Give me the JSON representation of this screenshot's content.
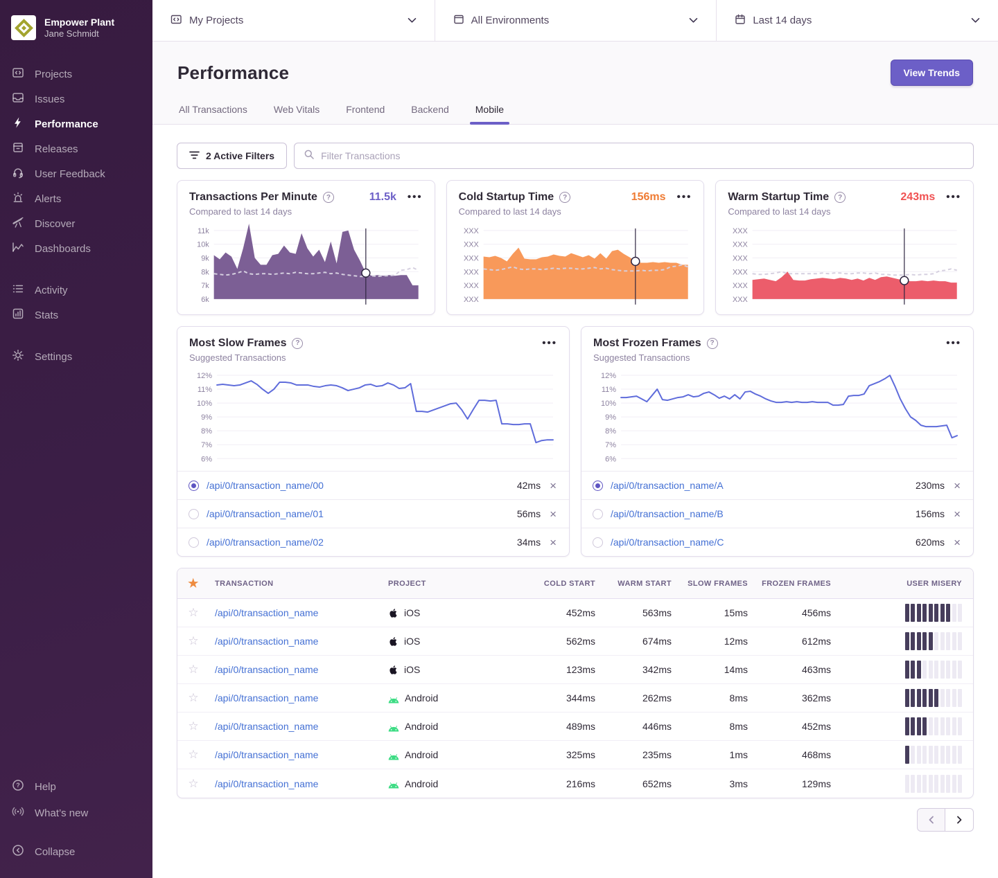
{
  "sidebar": {
    "org_name": "Empower Plant",
    "user_name": "Jane Schmidt",
    "items": [
      {
        "label": "Projects"
      },
      {
        "label": "Issues"
      },
      {
        "label": "Performance",
        "active": true
      },
      {
        "label": "Releases"
      },
      {
        "label": "User Feedback"
      },
      {
        "label": "Alerts"
      },
      {
        "label": "Discover"
      },
      {
        "label": "Dashboards"
      },
      {
        "label": "Activity"
      },
      {
        "label": "Stats"
      },
      {
        "label": "Settings"
      },
      {
        "label": "Help"
      },
      {
        "label": "What’s new"
      },
      {
        "label": "Collapse"
      }
    ]
  },
  "topbar": {
    "project_filter": "My Projects",
    "environment_filter": "All Environments",
    "date_filter": "Last 14 days"
  },
  "header": {
    "title": "Performance",
    "view_trends_label": "View Trends",
    "tabs": [
      {
        "label": "All Transactions"
      },
      {
        "label": "Web Vitals"
      },
      {
        "label": "Frontend"
      },
      {
        "label": "Backend"
      },
      {
        "label": "Mobile",
        "active": true
      }
    ]
  },
  "filters": {
    "active_filters_label": "2 Active Filters",
    "search_placeholder": "Filter Transactions"
  },
  "chart_data": [
    {
      "type": "area",
      "layout": "mini",
      "title": "Transactions Per Minute",
      "subtitle": "Compared to last 14 days",
      "current_value": "11.5k",
      "value_color": "#6c5fc7",
      "color": "#7c5f95",
      "yticks": [
        "11k",
        "10k",
        "9k",
        "8k",
        "7k",
        "6k"
      ],
      "ymin": 6,
      "ymax": 11,
      "values": [
        9.2,
        8.9,
        9.4,
        9.1,
        8.2,
        9.7,
        11.5,
        9.0,
        8.5,
        8.5,
        9.2,
        9.3,
        9.9,
        9.4,
        9.3,
        10.8,
        9.7,
        9.1,
        9.6,
        8.7,
        10.2,
        8.6,
        10.9,
        11.0,
        9.6,
        8.8,
        7.9,
        7.7,
        7.75,
        7.7,
        7.75,
        7.7,
        7.75,
        7.75,
        7.0,
        7.0
      ],
      "baseline": [
        7.85,
        7.8,
        7.75,
        7.8,
        7.9,
        8.05,
        7.85,
        7.8,
        7.85,
        7.85,
        7.8,
        7.85,
        7.9,
        7.85,
        7.95,
        7.9,
        7.85,
        7.85,
        7.9,
        7.95,
        7.85,
        7.9,
        7.8,
        7.75,
        7.7,
        7.65,
        7.65,
        7.7,
        7.65,
        7.7,
        7.7,
        7.75,
        8.1,
        8.15,
        8.3,
        8.1
      ],
      "cursor_index": 26
    },
    {
      "type": "area",
      "layout": "mini",
      "title": "Cold Startup Time",
      "subtitle": "Compared to last 14 days",
      "current_value": "156ms",
      "value_color": "#ef7b33",
      "color": "#f8995a",
      "yticks": [
        "XXX",
        "XXX",
        "XXX",
        "XXX",
        "XXX",
        "XXX"
      ],
      "ymin": 0,
      "ymax": 100,
      "values": [
        62,
        61,
        63,
        60,
        55,
        66,
        75,
        59,
        58,
        58,
        61,
        62,
        65,
        63,
        62,
        67,
        64,
        61,
        64,
        59,
        67,
        59,
        70,
        72,
        66,
        61,
        55,
        53,
        53,
        54,
        53,
        54,
        53,
        53,
        50,
        50
      ],
      "baseline": [
        44,
        43,
        42,
        43,
        45,
        47,
        44,
        43,
        44,
        44,
        43,
        44,
        45,
        44,
        45,
        45,
        44,
        44,
        45,
        46,
        44,
        45,
        43,
        42,
        41,
        41,
        41,
        42,
        41,
        42,
        42,
        43,
        47,
        48,
        50,
        47
      ],
      "cursor_index": 26
    },
    {
      "type": "area",
      "layout": "mini",
      "title": "Warm Startup Time",
      "subtitle": "Compared to last 14 days",
      "current_value": "243ms",
      "value_color": "#f05152",
      "color": "#ec5d6b",
      "yticks": [
        "XXX",
        "XXX",
        "XXX",
        "XXX",
        "XXX",
        "XXX"
      ],
      "ymin": 0,
      "ymax": 100,
      "values": [
        28,
        29,
        30,
        28,
        26,
        32,
        40,
        28,
        27,
        27,
        29,
        30,
        31,
        30,
        29,
        31,
        30,
        28,
        30,
        27,
        31,
        28,
        32,
        33,
        31,
        29,
        27,
        26,
        26,
        27,
        26,
        27,
        26,
        26,
        24,
        24
      ],
      "baseline": [
        37,
        36,
        36,
        37,
        38,
        40,
        37,
        37,
        37,
        37,
        37,
        37,
        38,
        37,
        38,
        38,
        37,
        37,
        38,
        38,
        37,
        38,
        36,
        36,
        35,
        35,
        35,
        36,
        35,
        36,
        36,
        37,
        41,
        42,
        44,
        42
      ],
      "cursor_index": 26
    },
    {
      "type": "line",
      "layout": "wide",
      "title": "Most Slow Frames",
      "subtitle": "Suggested Transactions",
      "color": "#5f6cdb",
      "yticks": [
        "12%",
        "11%",
        "10%",
        "9%",
        "8%",
        "7%",
        "6%"
      ],
      "ymin": 6,
      "ymax": 12,
      "values": [
        11.3,
        11.35,
        11.3,
        11.25,
        11.3,
        11.45,
        11.6,
        11.35,
        11.0,
        10.7,
        11.0,
        11.5,
        11.5,
        11.45,
        11.3,
        11.3,
        11.3,
        11.2,
        11.15,
        11.25,
        11.3,
        11.25,
        11.1,
        10.9,
        11.0,
        11.1,
        11.3,
        11.35,
        11.2,
        11.25,
        11.45,
        11.3,
        11.05,
        11.1,
        11.4,
        9.4,
        9.4,
        9.35,
        9.5,
        9.65,
        9.8,
        9.95,
        10.0,
        9.5,
        8.85,
        9.55,
        10.2,
        10.2,
        10.15,
        10.2,
        8.5,
        8.5,
        8.45,
        8.45,
        8.5,
        8.5,
        7.15,
        7.3,
        7.35,
        7.35
      ]
    },
    {
      "type": "line",
      "layout": "wide",
      "title": "Most Frozen Frames",
      "subtitle": "Suggested Transactions",
      "color": "#5f6cdb",
      "yticks": [
        "12%",
        "11%",
        "10%",
        "9%",
        "8%",
        "7%",
        "6%"
      ],
      "ymin": 6,
      "ymax": 12,
      "values": [
        10.4,
        10.4,
        10.45,
        10.5,
        10.3,
        10.1,
        10.55,
        11.0,
        10.25,
        10.2,
        10.3,
        10.4,
        10.45,
        10.6,
        10.45,
        10.5,
        10.7,
        10.8,
        10.6,
        10.35,
        10.5,
        10.3,
        10.6,
        10.3,
        10.8,
        10.85,
        10.65,
        10.5,
        10.3,
        10.15,
        10.05,
        10.05,
        10.1,
        10.05,
        10.1,
        10.05,
        10.05,
        10.1,
        10.05,
        10.05,
        10.05,
        9.85,
        9.85,
        9.9,
        10.5,
        10.55,
        10.55,
        10.65,
        11.25,
        11.4,
        11.55,
        11.75,
        12.0,
        11.2,
        10.3,
        9.6,
        9.0,
        8.75,
        8.4,
        8.3,
        8.3,
        8.3,
        8.35,
        8.4,
        7.5,
        7.65
      ]
    }
  ],
  "suggested_transactions": {
    "slow": [
      {
        "name": "/api/0/transaction_name/00",
        "value": "42ms",
        "selected": true
      },
      {
        "name": "/api/0/transaction_name/01",
        "value": "56ms",
        "selected": false
      },
      {
        "name": "/api/0/transaction_name/02",
        "value": "34ms",
        "selected": false
      }
    ],
    "frozen": [
      {
        "name": "/api/0/transaction_name/A",
        "value": "230ms",
        "selected": true
      },
      {
        "name": "/api/0/transaction_name/B",
        "value": "156ms",
        "selected": false
      },
      {
        "name": "/api/0/transaction_name/C",
        "value": "620ms",
        "selected": false
      }
    ]
  },
  "table": {
    "misery_total": 10,
    "headers": {
      "transaction": "TRANSACTION",
      "project": "PROJECT",
      "cold_start": "COLD START",
      "warm_start": "WARM START",
      "slow_frames": "SLOW FRAMES",
      "frozen_frames": "FROZEN FRAMES",
      "user_misery": "USER MISERY"
    },
    "rows": [
      {
        "transaction": "/api/0/transaction_name",
        "project": "iOS",
        "platform": "ios",
        "cold": "452ms",
        "warm": "563ms",
        "slow": "15ms",
        "frozen": "456ms",
        "misery": 8
      },
      {
        "transaction": "/api/0/transaction_name",
        "project": "iOS",
        "platform": "ios",
        "cold": "562ms",
        "warm": "674ms",
        "slow": "12ms",
        "frozen": "612ms",
        "misery": 5
      },
      {
        "transaction": "/api/0/transaction_name",
        "project": "iOS",
        "platform": "ios",
        "cold": "123ms",
        "warm": "342ms",
        "slow": "14ms",
        "frozen": "463ms",
        "misery": 3
      },
      {
        "transaction": "/api/0/transaction_name",
        "project": "Android",
        "platform": "android",
        "cold": "344ms",
        "warm": "262ms",
        "slow": "8ms",
        "frozen": "362ms",
        "misery": 6
      },
      {
        "transaction": "/api/0/transaction_name",
        "project": "Android",
        "platform": "android",
        "cold": "489ms",
        "warm": "446ms",
        "slow": "8ms",
        "frozen": "452ms",
        "misery": 4
      },
      {
        "transaction": "/api/0/transaction_name",
        "project": "Android",
        "platform": "android",
        "cold": "325ms",
        "warm": "235ms",
        "slow": "1ms",
        "frozen": "468ms",
        "misery": 1
      },
      {
        "transaction": "/api/0/transaction_name",
        "project": "Android",
        "platform": "android",
        "cold": "216ms",
        "warm": "652ms",
        "slow": "3ms",
        "frozen": "129ms",
        "misery": 0
      }
    ]
  },
  "colors": {
    "accent_purple": "#6c5fc7",
    "link_blue": "#4470d4",
    "orange": "#ef7b33",
    "red": "#f05152",
    "chart_line": "#5f6cdb"
  }
}
